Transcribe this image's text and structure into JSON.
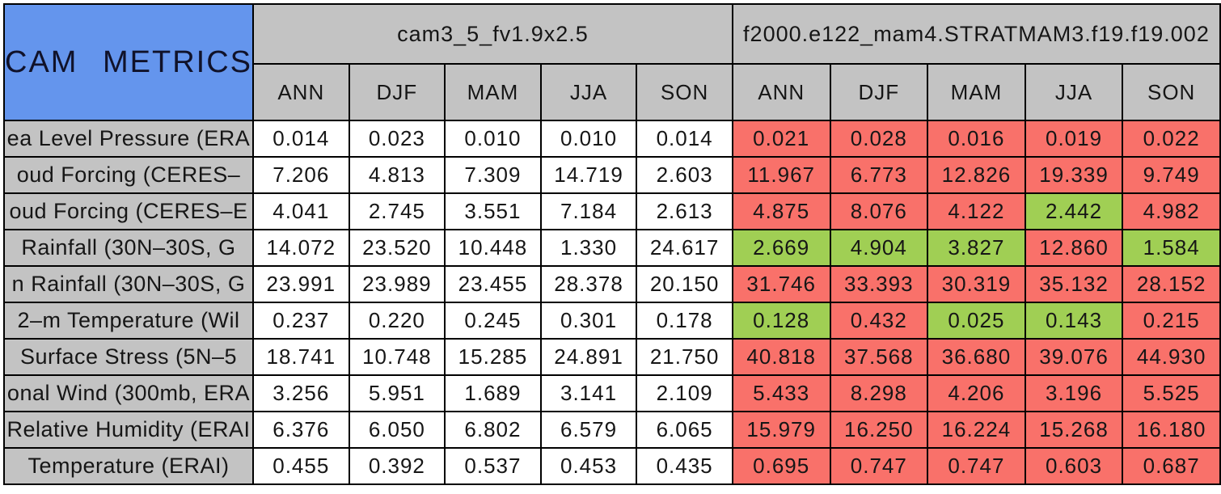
{
  "colors": {
    "title_bg": "#6495ed",
    "header_bg": "#c3c3c3",
    "value_bg": "#ffffff",
    "worse_bg": "#f9716a",
    "better_bg": "#a0cf54",
    "border": "#000000"
  },
  "chart_data": {
    "type": "table",
    "title": "CAM METRICS",
    "column_groups": [
      "cam3_5_fv1.9x2.5",
      "f2000.e122_mam4.STRATMAM3.f19.f19.002"
    ],
    "seasons": [
      "ANN",
      "DJF",
      "MAM",
      "JJA",
      "SON"
    ],
    "status_colors": {
      "worse": "#f9716a",
      "better": "#a0cf54"
    },
    "rows": [
      {
        "label": "ea Level Pressure (ERA",
        "m1": [
          "0.014",
          "0.023",
          "0.010",
          "0.010",
          "0.014"
        ],
        "m2": [
          "0.021",
          "0.028",
          "0.016",
          "0.019",
          "0.022"
        ],
        "m2s": [
          "worse",
          "worse",
          "worse",
          "worse",
          "worse"
        ]
      },
      {
        "label": "oud Forcing (CERES–",
        "m1": [
          "7.206",
          "4.813",
          "7.309",
          "14.719",
          "2.603"
        ],
        "m2": [
          "11.967",
          "6.773",
          "12.826",
          "19.339",
          "9.749"
        ],
        "m2s": [
          "worse",
          "worse",
          "worse",
          "worse",
          "worse"
        ]
      },
      {
        "label": "oud Forcing (CERES–E",
        "m1": [
          "4.041",
          "2.745",
          "3.551",
          "7.184",
          "2.613"
        ],
        "m2": [
          "4.875",
          "8.076",
          "4.122",
          "2.442",
          "4.982"
        ],
        "m2s": [
          "worse",
          "worse",
          "worse",
          "better",
          "worse"
        ]
      },
      {
        "label": "Rainfall (30N–30S, G",
        "m1": [
          "14.072",
          "23.520",
          "10.448",
          "1.330",
          "24.617"
        ],
        "m2": [
          "2.669",
          "4.904",
          "3.827",
          "12.860",
          "1.584"
        ],
        "m2s": [
          "better",
          "better",
          "better",
          "worse",
          "better"
        ]
      },
      {
        "label": "n Rainfall (30N–30S, G",
        "m1": [
          "23.991",
          "23.989",
          "23.455",
          "28.378",
          "20.150"
        ],
        "m2": [
          "31.746",
          "33.393",
          "30.319",
          "35.132",
          "28.152"
        ],
        "m2s": [
          "worse",
          "worse",
          "worse",
          "worse",
          "worse"
        ]
      },
      {
        "label": "2–m Temperature (Wil",
        "m1": [
          "0.237",
          "0.220",
          "0.245",
          "0.301",
          "0.178"
        ],
        "m2": [
          "0.128",
          "0.432",
          "0.025",
          "0.143",
          "0.215"
        ],
        "m2s": [
          "better",
          "worse",
          "better",
          "better",
          "worse"
        ]
      },
      {
        "label": "Surface Stress (5N–5",
        "m1": [
          "18.741",
          "10.748",
          "15.285",
          "24.891",
          "21.750"
        ],
        "m2": [
          "40.818",
          "37.568",
          "36.680",
          "39.076",
          "44.930"
        ],
        "m2s": [
          "worse",
          "worse",
          "worse",
          "worse",
          "worse"
        ]
      },
      {
        "label": "onal Wind (300mb, ERA",
        "m1": [
          "3.256",
          "5.951",
          "1.689",
          "3.141",
          "2.109"
        ],
        "m2": [
          "5.433",
          "8.298",
          "4.206",
          "3.196",
          "5.525"
        ],
        "m2s": [
          "worse",
          "worse",
          "worse",
          "worse",
          "worse"
        ]
      },
      {
        "label": "Relative Humidity (ERAI",
        "m1": [
          "6.376",
          "6.050",
          "6.802",
          "6.579",
          "6.065"
        ],
        "m2": [
          "15.979",
          "16.250",
          "16.224",
          "15.268",
          "16.180"
        ],
        "m2s": [
          "worse",
          "worse",
          "worse",
          "worse",
          "worse"
        ]
      },
      {
        "label": "Temperature (ERAI)",
        "m1": [
          "0.455",
          "0.392",
          "0.537",
          "0.453",
          "0.435"
        ],
        "m2": [
          "0.695",
          "0.747",
          "0.747",
          "0.603",
          "0.687"
        ],
        "m2s": [
          "worse",
          "worse",
          "worse",
          "worse",
          "worse"
        ]
      }
    ]
  }
}
